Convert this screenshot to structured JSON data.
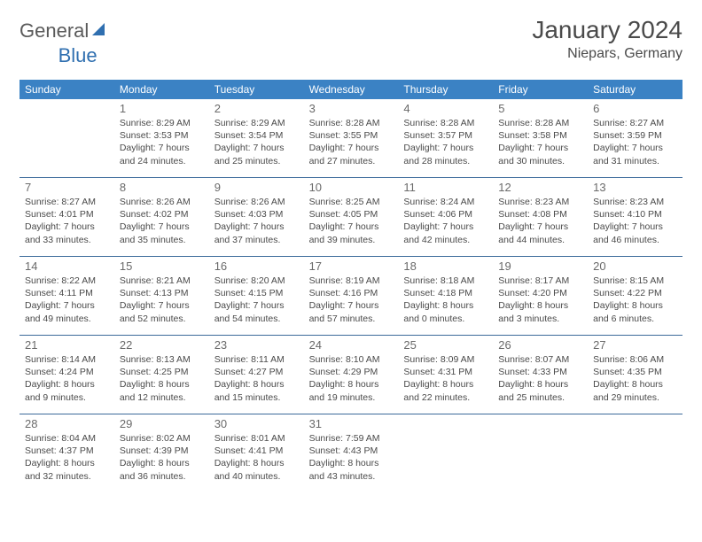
{
  "logo": {
    "text1": "General",
    "text2": "Blue"
  },
  "title": "January 2024",
  "location": "Niepars, Germany",
  "colors": {
    "header_bg": "#3b82c4",
    "header_text": "#ffffff",
    "week_border": "#3b6a9a",
    "text": "#4a4a4a",
    "daynum": "#6a6a6a",
    "logo_blue": "#2f6fb0"
  },
  "dayNames": [
    "Sunday",
    "Monday",
    "Tuesday",
    "Wednesday",
    "Thursday",
    "Friday",
    "Saturday"
  ],
  "weeks": [
    [
      {
        "n": "",
        "sr": "",
        "ss": "",
        "d1": "",
        "d2": ""
      },
      {
        "n": "1",
        "sr": "Sunrise: 8:29 AM",
        "ss": "Sunset: 3:53 PM",
        "d1": "Daylight: 7 hours",
        "d2": "and 24 minutes."
      },
      {
        "n": "2",
        "sr": "Sunrise: 8:29 AM",
        "ss": "Sunset: 3:54 PM",
        "d1": "Daylight: 7 hours",
        "d2": "and 25 minutes."
      },
      {
        "n": "3",
        "sr": "Sunrise: 8:28 AM",
        "ss": "Sunset: 3:55 PM",
        "d1": "Daylight: 7 hours",
        "d2": "and 27 minutes."
      },
      {
        "n": "4",
        "sr": "Sunrise: 8:28 AM",
        "ss": "Sunset: 3:57 PM",
        "d1": "Daylight: 7 hours",
        "d2": "and 28 minutes."
      },
      {
        "n": "5",
        "sr": "Sunrise: 8:28 AM",
        "ss": "Sunset: 3:58 PM",
        "d1": "Daylight: 7 hours",
        "d2": "and 30 minutes."
      },
      {
        "n": "6",
        "sr": "Sunrise: 8:27 AM",
        "ss": "Sunset: 3:59 PM",
        "d1": "Daylight: 7 hours",
        "d2": "and 31 minutes."
      }
    ],
    [
      {
        "n": "7",
        "sr": "Sunrise: 8:27 AM",
        "ss": "Sunset: 4:01 PM",
        "d1": "Daylight: 7 hours",
        "d2": "and 33 minutes."
      },
      {
        "n": "8",
        "sr": "Sunrise: 8:26 AM",
        "ss": "Sunset: 4:02 PM",
        "d1": "Daylight: 7 hours",
        "d2": "and 35 minutes."
      },
      {
        "n": "9",
        "sr": "Sunrise: 8:26 AM",
        "ss": "Sunset: 4:03 PM",
        "d1": "Daylight: 7 hours",
        "d2": "and 37 minutes."
      },
      {
        "n": "10",
        "sr": "Sunrise: 8:25 AM",
        "ss": "Sunset: 4:05 PM",
        "d1": "Daylight: 7 hours",
        "d2": "and 39 minutes."
      },
      {
        "n": "11",
        "sr": "Sunrise: 8:24 AM",
        "ss": "Sunset: 4:06 PM",
        "d1": "Daylight: 7 hours",
        "d2": "and 42 minutes."
      },
      {
        "n": "12",
        "sr": "Sunrise: 8:23 AM",
        "ss": "Sunset: 4:08 PM",
        "d1": "Daylight: 7 hours",
        "d2": "and 44 minutes."
      },
      {
        "n": "13",
        "sr": "Sunrise: 8:23 AM",
        "ss": "Sunset: 4:10 PM",
        "d1": "Daylight: 7 hours",
        "d2": "and 46 minutes."
      }
    ],
    [
      {
        "n": "14",
        "sr": "Sunrise: 8:22 AM",
        "ss": "Sunset: 4:11 PM",
        "d1": "Daylight: 7 hours",
        "d2": "and 49 minutes."
      },
      {
        "n": "15",
        "sr": "Sunrise: 8:21 AM",
        "ss": "Sunset: 4:13 PM",
        "d1": "Daylight: 7 hours",
        "d2": "and 52 minutes."
      },
      {
        "n": "16",
        "sr": "Sunrise: 8:20 AM",
        "ss": "Sunset: 4:15 PM",
        "d1": "Daylight: 7 hours",
        "d2": "and 54 minutes."
      },
      {
        "n": "17",
        "sr": "Sunrise: 8:19 AM",
        "ss": "Sunset: 4:16 PM",
        "d1": "Daylight: 7 hours",
        "d2": "and 57 minutes."
      },
      {
        "n": "18",
        "sr": "Sunrise: 8:18 AM",
        "ss": "Sunset: 4:18 PM",
        "d1": "Daylight: 8 hours",
        "d2": "and 0 minutes."
      },
      {
        "n": "19",
        "sr": "Sunrise: 8:17 AM",
        "ss": "Sunset: 4:20 PM",
        "d1": "Daylight: 8 hours",
        "d2": "and 3 minutes."
      },
      {
        "n": "20",
        "sr": "Sunrise: 8:15 AM",
        "ss": "Sunset: 4:22 PM",
        "d1": "Daylight: 8 hours",
        "d2": "and 6 minutes."
      }
    ],
    [
      {
        "n": "21",
        "sr": "Sunrise: 8:14 AM",
        "ss": "Sunset: 4:24 PM",
        "d1": "Daylight: 8 hours",
        "d2": "and 9 minutes."
      },
      {
        "n": "22",
        "sr": "Sunrise: 8:13 AM",
        "ss": "Sunset: 4:25 PM",
        "d1": "Daylight: 8 hours",
        "d2": "and 12 minutes."
      },
      {
        "n": "23",
        "sr": "Sunrise: 8:11 AM",
        "ss": "Sunset: 4:27 PM",
        "d1": "Daylight: 8 hours",
        "d2": "and 15 minutes."
      },
      {
        "n": "24",
        "sr": "Sunrise: 8:10 AM",
        "ss": "Sunset: 4:29 PM",
        "d1": "Daylight: 8 hours",
        "d2": "and 19 minutes."
      },
      {
        "n": "25",
        "sr": "Sunrise: 8:09 AM",
        "ss": "Sunset: 4:31 PM",
        "d1": "Daylight: 8 hours",
        "d2": "and 22 minutes."
      },
      {
        "n": "26",
        "sr": "Sunrise: 8:07 AM",
        "ss": "Sunset: 4:33 PM",
        "d1": "Daylight: 8 hours",
        "d2": "and 25 minutes."
      },
      {
        "n": "27",
        "sr": "Sunrise: 8:06 AM",
        "ss": "Sunset: 4:35 PM",
        "d1": "Daylight: 8 hours",
        "d2": "and 29 minutes."
      }
    ],
    [
      {
        "n": "28",
        "sr": "Sunrise: 8:04 AM",
        "ss": "Sunset: 4:37 PM",
        "d1": "Daylight: 8 hours",
        "d2": "and 32 minutes."
      },
      {
        "n": "29",
        "sr": "Sunrise: 8:02 AM",
        "ss": "Sunset: 4:39 PM",
        "d1": "Daylight: 8 hours",
        "d2": "and 36 minutes."
      },
      {
        "n": "30",
        "sr": "Sunrise: 8:01 AM",
        "ss": "Sunset: 4:41 PM",
        "d1": "Daylight: 8 hours",
        "d2": "and 40 minutes."
      },
      {
        "n": "31",
        "sr": "Sunrise: 7:59 AM",
        "ss": "Sunset: 4:43 PM",
        "d1": "Daylight: 8 hours",
        "d2": "and 43 minutes."
      },
      {
        "n": "",
        "sr": "",
        "ss": "",
        "d1": "",
        "d2": ""
      },
      {
        "n": "",
        "sr": "",
        "ss": "",
        "d1": "",
        "d2": ""
      },
      {
        "n": "",
        "sr": "",
        "ss": "",
        "d1": "",
        "d2": ""
      }
    ]
  ]
}
